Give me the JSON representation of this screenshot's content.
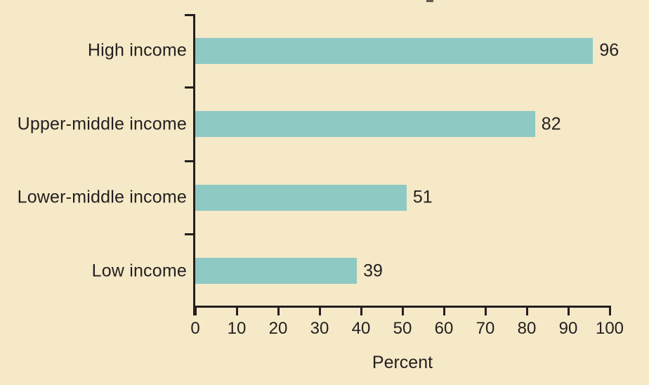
{
  "figure": {
    "background_color": "#F5E9C7",
    "text_color": "#231F20",
    "axis_color": "#231F20"
  },
  "chart_data": {
    "type": "bar",
    "orientation": "horizontal",
    "categories": [
      "High income",
      "Upper-middle income",
      "Lower-middle income",
      "Low income"
    ],
    "values": [
      96,
      82,
      51,
      39
    ],
    "value_labels": [
      "96",
      "82",
      "51",
      "39"
    ],
    "xlabel": "Percent",
    "xlim": [
      0,
      100
    ],
    "xticks": [
      0,
      10,
      20,
      30,
      40,
      50,
      60,
      70,
      80,
      90,
      100
    ],
    "bar_color": "#8FC9C3",
    "grid": false,
    "data_labels_shown": true
  }
}
